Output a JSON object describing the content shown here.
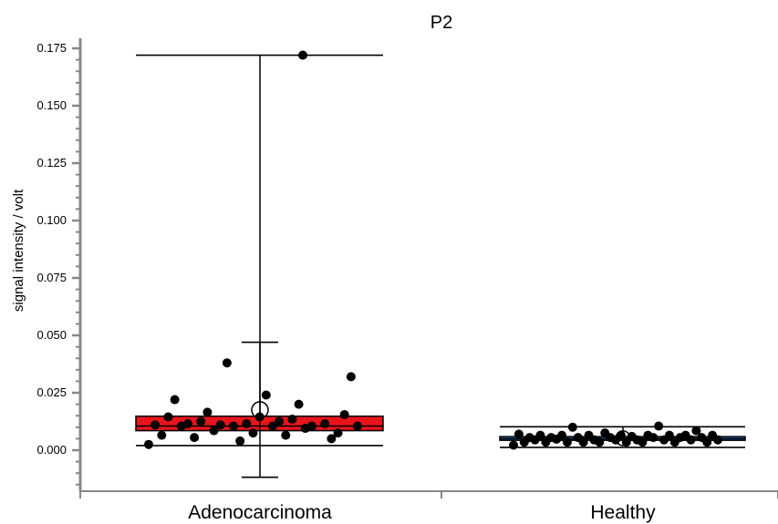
{
  "chart_data": {
    "type": "box",
    "title": "P2",
    "ylabel": "signal intensity / volt",
    "xlabel": "",
    "ylim": [
      0,
      0.175
    ],
    "yticks": [
      "0.000",
      "0.025",
      "0.050",
      "0.075",
      "0.100",
      "0.125",
      "0.150",
      "0.175"
    ],
    "categories": [
      "Adenocarcinoma",
      "Healthy"
    ],
    "grid": false,
    "colors": {
      "Adenocarcinoma": "#e8141c",
      "Healthy": "#2f6fd0",
      "axis": "#888888",
      "marks": "#000000"
    },
    "groups": [
      {
        "category": "Adenocarcinoma",
        "q1": 0.0085,
        "median": 0.0105,
        "q3": 0.0148,
        "whisker_low": 0.002,
        "whisker_high": 0.172,
        "mean": 0.0175,
        "mean_minus_sd": -0.0118,
        "mean_plus_sd": 0.047,
        "points": [
          0.0025,
          0.011,
          0.0065,
          0.0145,
          0.022,
          0.0105,
          0.0115,
          0.0055,
          0.0125,
          0.0165,
          0.0085,
          0.011,
          0.038,
          0.0105,
          0.004,
          0.0115,
          0.0075,
          0.0145,
          0.024,
          0.0105,
          0.0125,
          0.0065,
          0.0135,
          0.02,
          0.0095,
          0.0105,
          0.172,
          0.0115,
          0.005,
          0.0075,
          0.0155,
          0.032,
          0.0105
        ]
      },
      {
        "category": "Healthy",
        "q1": 0.0043,
        "median": 0.005,
        "q3": 0.0059,
        "whisker_low": 0.0012,
        "whisker_high": 0.0102,
        "mean": 0.0052,
        "points": [
          0.0022,
          0.007,
          0.0035,
          0.0055,
          0.0045,
          0.0065,
          0.0035,
          0.0055,
          0.0048,
          0.0065,
          0.0035,
          0.01,
          0.0055,
          0.0035,
          0.0065,
          0.0045,
          0.0035,
          0.0075,
          0.0055,
          0.0045,
          0.0065,
          0.0035,
          0.006,
          0.0045,
          0.0035,
          0.0065,
          0.0055,
          0.0105,
          0.0045,
          0.0065,
          0.0035,
          0.0055,
          0.0065,
          0.0045,
          0.0085,
          0.0055,
          0.0035,
          0.0065,
          0.0045
        ]
      }
    ]
  }
}
